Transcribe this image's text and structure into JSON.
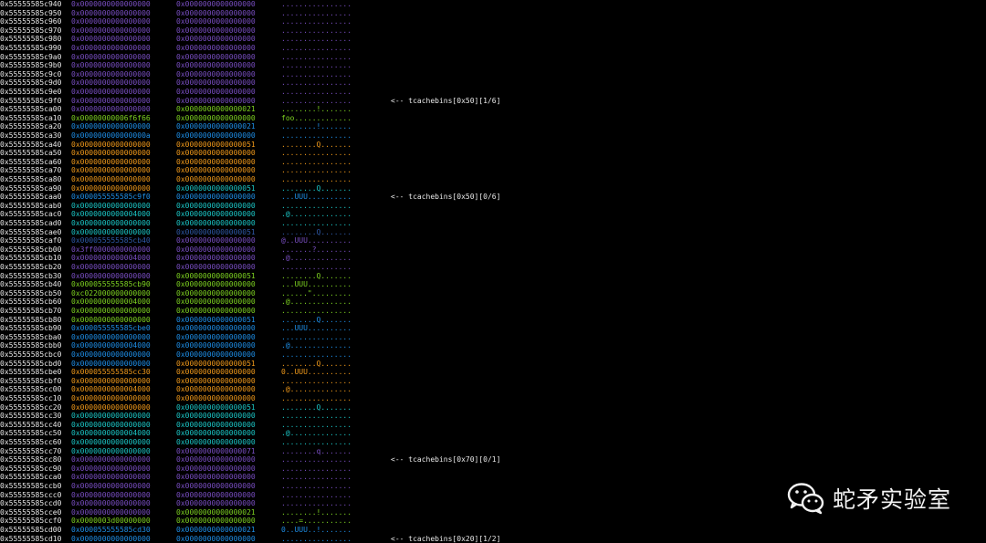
{
  "colors": {
    "background": "#000000",
    "address": "#e8e8e8",
    "p": "#7a4fc4",
    "o": "#f29a1a",
    "b": "#1e8fe8",
    "c": "#1bc7c7",
    "g": "#7ed321",
    "n": "#2f5aa8",
    "annotation": "#e8e8e8"
  },
  "rows": [
    {
      "addr": "0x55555585c940",
      "q1": "0x0000000000000000",
      "q1c": "p",
      "q2": "0x0000000000000000",
      "q2c": "p",
      "ascii": "................",
      "ac": "p"
    },
    {
      "addr": "0x55555585c950",
      "q1": "0x0000000000000000",
      "q1c": "p",
      "q2": "0x0000000000000000",
      "q2c": "p",
      "ascii": "................",
      "ac": "p"
    },
    {
      "addr": "0x55555585c960",
      "q1": "0x0000000000000000",
      "q1c": "p",
      "q2": "0x0000000000000000",
      "q2c": "p",
      "ascii": "................",
      "ac": "p"
    },
    {
      "addr": "0x55555585c970",
      "q1": "0x0000000000000000",
      "q1c": "p",
      "q2": "0x0000000000000000",
      "q2c": "p",
      "ascii": "................",
      "ac": "p"
    },
    {
      "addr": "0x55555585c980",
      "q1": "0x0000000000000000",
      "q1c": "p",
      "q2": "0x0000000000000000",
      "q2c": "p",
      "ascii": "................",
      "ac": "p"
    },
    {
      "addr": "0x55555585c990",
      "q1": "0x0000000000000000",
      "q1c": "p",
      "q2": "0x0000000000000000",
      "q2c": "p",
      "ascii": "................",
      "ac": "p"
    },
    {
      "addr": "0x55555585c9a0",
      "q1": "0x0000000000000000",
      "q1c": "p",
      "q2": "0x0000000000000000",
      "q2c": "p",
      "ascii": "................",
      "ac": "p"
    },
    {
      "addr": "0x55555585c9b0",
      "q1": "0x0000000000000000",
      "q1c": "p",
      "q2": "0x0000000000000000",
      "q2c": "p",
      "ascii": "................",
      "ac": "p"
    },
    {
      "addr": "0x55555585c9c0",
      "q1": "0x0000000000000000",
      "q1c": "p",
      "q2": "0x0000000000000000",
      "q2c": "p",
      "ascii": "................",
      "ac": "p"
    },
    {
      "addr": "0x55555585c9d0",
      "q1": "0x0000000000000000",
      "q1c": "p",
      "q2": "0x0000000000000000",
      "q2c": "p",
      "ascii": "................",
      "ac": "p"
    },
    {
      "addr": "0x55555585c9e0",
      "q1": "0x0000000000000000",
      "q1c": "p",
      "q2": "0x0000000000000000",
      "q2c": "p",
      "ascii": "................",
      "ac": "p"
    },
    {
      "addr": "0x55555585c9f0",
      "q1": "0x0000000000000000",
      "q1c": "p",
      "q2": "0x0000000000000000",
      "q2c": "p",
      "ascii": "................",
      "ac": "p",
      "note": "<-- tcachebins[0x50][1/6]"
    },
    {
      "addr": "0x55555585ca00",
      "q1": "0x0000000000000000",
      "q1c": "p",
      "q2": "0x0000000000000021",
      "q2c": "g",
      "ascii": "........!.......",
      "ac": "g"
    },
    {
      "addr": "0x55555585ca10",
      "q1": "0x00000000006f6f66",
      "q1c": "g",
      "q2": "0x0000000000000000",
      "q2c": "g",
      "ascii": "foo.............",
      "ac": "g"
    },
    {
      "addr": "0x55555585ca20",
      "q1": "0x0000000000000000",
      "q1c": "b",
      "q2": "0x0000000000000021",
      "q2c": "b",
      "ascii": "........!.......",
      "ac": "b"
    },
    {
      "addr": "0x55555585ca30",
      "q1": "0x000000000000000a",
      "q1c": "b",
      "q2": "0x0000000000000000",
      "q2c": "b",
      "ascii": "................",
      "ac": "b"
    },
    {
      "addr": "0x55555585ca40",
      "q1": "0x0000000000000000",
      "q1c": "o",
      "q2": "0x0000000000000051",
      "q2c": "o",
      "ascii": "........Q.......",
      "ac": "o"
    },
    {
      "addr": "0x55555585ca50",
      "q1": "0x0000000000000000",
      "q1c": "o",
      "q2": "0x0000000000000000",
      "q2c": "o",
      "ascii": "................",
      "ac": "o"
    },
    {
      "addr": "0x55555585ca60",
      "q1": "0x0000000000000000",
      "q1c": "o",
      "q2": "0x0000000000000000",
      "q2c": "o",
      "ascii": "................",
      "ac": "o"
    },
    {
      "addr": "0x55555585ca70",
      "q1": "0x0000000000000000",
      "q1c": "o",
      "q2": "0x0000000000000000",
      "q2c": "o",
      "ascii": "................",
      "ac": "o"
    },
    {
      "addr": "0x55555585ca80",
      "q1": "0x0000000000000000",
      "q1c": "o",
      "q2": "0x0000000000000000",
      "q2c": "o",
      "ascii": "................",
      "ac": "o"
    },
    {
      "addr": "0x55555585ca90",
      "q1": "0x0000000000000000",
      "q1c": "o",
      "q2": "0x0000000000000051",
      "q2c": "c",
      "ascii": "........Q.......",
      "ac": "c"
    },
    {
      "addr": "0x55555585caa0",
      "q1": "0x000055555585c9f0",
      "q1c": "b",
      "q2": "0x0000000000000000",
      "q2c": "b",
      "ascii": "...UUU..........",
      "ac": "b",
      "note": "<-- tcachebins[0x50][0/6]"
    },
    {
      "addr": "0x55555585cab0",
      "q1": "0x0000000000000000",
      "q1c": "c",
      "q2": "0x0000000000000000",
      "q2c": "c",
      "ascii": "................",
      "ac": "c"
    },
    {
      "addr": "0x55555585cac0",
      "q1": "0x0000000000004000",
      "q1c": "c",
      "q2": "0x0000000000000000",
      "q2c": "c",
      "ascii": ".@..............",
      "ac": "c"
    },
    {
      "addr": "0x55555585cad0",
      "q1": "0x0000000000000000",
      "q1c": "c",
      "q2": "0x0000000000000000",
      "q2c": "c",
      "ascii": "................",
      "ac": "c"
    },
    {
      "addr": "0x55555585cae0",
      "q1": "0x0000000000000000",
      "q1c": "c",
      "q2": "0x0000000000000051",
      "q2c": "n",
      "ascii": "........Q.......",
      "ac": "n"
    },
    {
      "addr": "0x55555585caf0",
      "q1": "0x000055555585cb40",
      "q1c": "n",
      "q2": "0x0000000000000000",
      "q2c": "p",
      "ascii": "@..UUU..........",
      "ac": "p"
    },
    {
      "addr": "0x55555585cb00",
      "q1": "0x3ff0000000000000",
      "q1c": "p",
      "q2": "0x0000000000000000",
      "q2c": "p",
      "ascii": ".......?........",
      "ac": "p"
    },
    {
      "addr": "0x55555585cb10",
      "q1": "0x0000000000004000",
      "q1c": "p",
      "q2": "0x0000000000000000",
      "q2c": "p",
      "ascii": ".@..............",
      "ac": "p"
    },
    {
      "addr": "0x55555585cb20",
      "q1": "0x0000000000000000",
      "q1c": "p",
      "q2": "0x0000000000000000",
      "q2c": "p",
      "ascii": "................",
      "ac": "p"
    },
    {
      "addr": "0x55555585cb30",
      "q1": "0x0000000000000000",
      "q1c": "p",
      "q2": "0x0000000000000051",
      "q2c": "g",
      "ascii": "........Q.......",
      "ac": "g"
    },
    {
      "addr": "0x55555585cb40",
      "q1": "0x000055555585cb90",
      "q1c": "g",
      "q2": "0x0000000000000000",
      "q2c": "g",
      "ascii": "...UUU..........",
      "ac": "g"
    },
    {
      "addr": "0x55555585cb50",
      "q1": "0xc022000000000000",
      "q1c": "g",
      "q2": "0x0000000000000000",
      "q2c": "g",
      "ascii": "......\".........",
      "ac": "g"
    },
    {
      "addr": "0x55555585cb60",
      "q1": "0x0000000000004000",
      "q1c": "g",
      "q2": "0x0000000000000000",
      "q2c": "g",
      "ascii": ".@..............",
      "ac": "g"
    },
    {
      "addr": "0x55555585cb70",
      "q1": "0x0000000000000000",
      "q1c": "g",
      "q2": "0x0000000000000000",
      "q2c": "g",
      "ascii": "................",
      "ac": "g"
    },
    {
      "addr": "0x55555585cb80",
      "q1": "0x0000000000000000",
      "q1c": "g",
      "q2": "0x0000000000000051",
      "q2c": "b",
      "ascii": "........Q.......",
      "ac": "b"
    },
    {
      "addr": "0x55555585cb90",
      "q1": "0x000055555585cbe0",
      "q1c": "b",
      "q2": "0x0000000000000000",
      "q2c": "b",
      "ascii": "...UUU..........",
      "ac": "b"
    },
    {
      "addr": "0x55555585cba0",
      "q1": "0x0000000000000000",
      "q1c": "b",
      "q2": "0x0000000000000000",
      "q2c": "b",
      "ascii": "................",
      "ac": "b"
    },
    {
      "addr": "0x55555585cbb0",
      "q1": "0x0000000000004000",
      "q1c": "b",
      "q2": "0x0000000000000000",
      "q2c": "b",
      "ascii": ".@..............",
      "ac": "b"
    },
    {
      "addr": "0x55555585cbc0",
      "q1": "0x0000000000000000",
      "q1c": "b",
      "q2": "0x0000000000000000",
      "q2c": "b",
      "ascii": "................",
      "ac": "b"
    },
    {
      "addr": "0x55555585cbd0",
      "q1": "0x0000000000000000",
      "q1c": "b",
      "q2": "0x0000000000000051",
      "q2c": "o",
      "ascii": "........Q.......",
      "ac": "o"
    },
    {
      "addr": "0x55555585cbe0",
      "q1": "0x000055555585cc30",
      "q1c": "o",
      "q2": "0x0000000000000000",
      "q2c": "o",
      "ascii": "0..UUU..........",
      "ac": "o"
    },
    {
      "addr": "0x55555585cbf0",
      "q1": "0x0000000000000000",
      "q1c": "o",
      "q2": "0x0000000000000000",
      "q2c": "o",
      "ascii": "................",
      "ac": "o"
    },
    {
      "addr": "0x55555585cc00",
      "q1": "0x0000000000004000",
      "q1c": "o",
      "q2": "0x0000000000000000",
      "q2c": "o",
      "ascii": ".@..............",
      "ac": "o"
    },
    {
      "addr": "0x55555585cc10",
      "q1": "0x0000000000000000",
      "q1c": "o",
      "q2": "0x0000000000000000",
      "q2c": "o",
      "ascii": "................",
      "ac": "o"
    },
    {
      "addr": "0x55555585cc20",
      "q1": "0x0000000000000000",
      "q1c": "o",
      "q2": "0x0000000000000051",
      "q2c": "c",
      "ascii": "........Q.......",
      "ac": "c"
    },
    {
      "addr": "0x55555585cc30",
      "q1": "0x0000000000000000",
      "q1c": "c",
      "q2": "0x0000000000000000",
      "q2c": "c",
      "ascii": "................",
      "ac": "c"
    },
    {
      "addr": "0x55555585cc40",
      "q1": "0x0000000000000000",
      "q1c": "c",
      "q2": "0x0000000000000000",
      "q2c": "c",
      "ascii": "................",
      "ac": "c"
    },
    {
      "addr": "0x55555585cc50",
      "q1": "0x0000000000004000",
      "q1c": "c",
      "q2": "0x0000000000000000",
      "q2c": "c",
      "ascii": ".@..............",
      "ac": "c"
    },
    {
      "addr": "0x55555585cc60",
      "q1": "0x0000000000000000",
      "q1c": "c",
      "q2": "0x0000000000000000",
      "q2c": "c",
      "ascii": "................",
      "ac": "c"
    },
    {
      "addr": "0x55555585cc70",
      "q1": "0x0000000000000000",
      "q1c": "c",
      "q2": "0x0000000000000071",
      "q2c": "p",
      "ascii": "........q.......",
      "ac": "p"
    },
    {
      "addr": "0x55555585cc80",
      "q1": "0x0000000000000000",
      "q1c": "p",
      "q2": "0x0000000000000000",
      "q2c": "p",
      "ascii": "................",
      "ac": "p",
      "note": "<-- tcachebins[0x70][0/1]"
    },
    {
      "addr": "0x55555585cc90",
      "q1": "0x0000000000000000",
      "q1c": "p",
      "q2": "0x0000000000000000",
      "q2c": "p",
      "ascii": "................",
      "ac": "p"
    },
    {
      "addr": "0x55555585cca0",
      "q1": "0x0000000000000000",
      "q1c": "p",
      "q2": "0x0000000000000000",
      "q2c": "p",
      "ascii": "................",
      "ac": "p"
    },
    {
      "addr": "0x55555585ccb0",
      "q1": "0x0000000000000000",
      "q1c": "p",
      "q2": "0x0000000000000000",
      "q2c": "p",
      "ascii": "................",
      "ac": "p"
    },
    {
      "addr": "0x55555585ccc0",
      "q1": "0x0000000000000000",
      "q1c": "p",
      "q2": "0x0000000000000000",
      "q2c": "p",
      "ascii": "................",
      "ac": "p"
    },
    {
      "addr": "0x55555585ccd0",
      "q1": "0x0000000000000000",
      "q1c": "p",
      "q2": "0x0000000000000000",
      "q2c": "p",
      "ascii": "................",
      "ac": "p"
    },
    {
      "addr": "0x55555585cce0",
      "q1": "0x0000000000000000",
      "q1c": "p",
      "q2": "0x0000000000000021",
      "q2c": "g",
      "ascii": "........!.......",
      "ac": "g"
    },
    {
      "addr": "0x55555585ccf0",
      "q1": "0x0000003d00000000",
      "q1c": "g",
      "q2": "0x0000000000000000",
      "q2c": "g",
      "ascii": "....=...........",
      "ac": "g"
    },
    {
      "addr": "0x55555585cd00",
      "q1": "0x000055555585cd30",
      "q1c": "b",
      "q2": "0x0000000000000021",
      "q2c": "b",
      "ascii": "0..UUU..!.......",
      "ac": "b"
    },
    {
      "addr": "0x55555585cd10",
      "q1": "0x0000000000000000",
      "q1c": "b",
      "q2": "0x0000000000000000",
      "q2c": "b",
      "ascii": "................",
      "ac": "b",
      "note": "<-- tcachebins[0x20][1/2]"
    }
  ],
  "watermark": {
    "icon": "wechat-icon",
    "text": "蛇矛实验室"
  }
}
